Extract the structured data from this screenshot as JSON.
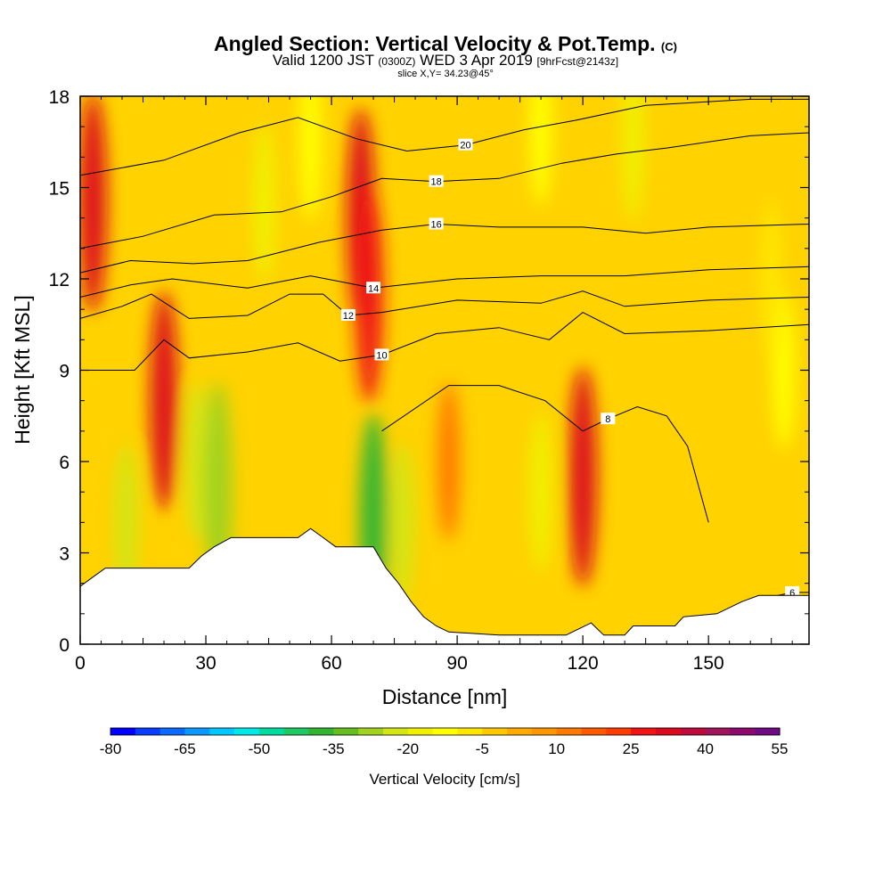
{
  "header": {
    "title": "Angled Section: Vertical Velocity & Pot.Temp.",
    "title_badge": "(C)",
    "valid_prefix": "Valid 1200 JST",
    "valid_utc": "(0300Z)",
    "valid_date": "WED 3 Apr 2019",
    "forecast_info": "[9hrFcst@2143z]",
    "slice_info": "slice X,Y= 34.23@45°"
  },
  "chart_data": {
    "type": "heatmap",
    "xlabel": "Distance [nm]",
    "ylabel": "Height [Kft MSL]",
    "xlim": [
      0,
      174
    ],
    "ylim": [
      0,
      18
    ],
    "x_ticks": [
      0,
      30,
      60,
      90,
      120,
      150
    ],
    "y_ticks": [
      0,
      3,
      6,
      9,
      12,
      15,
      18
    ],
    "grid": false,
    "field_variable": "Vertical Velocity [cm/s]",
    "colorbar": {
      "title": "Vertical Velocity [cm/s]",
      "tick_labels": [
        "-80",
        "-65",
        "-50",
        "-35",
        "-20",
        "-5",
        "10",
        "25",
        "40",
        "55"
      ],
      "colors": [
        "#0000ff",
        "#0a3dff",
        "#0a6aff",
        "#0a9aff",
        "#00c8ff",
        "#00e8e8",
        "#00dca0",
        "#1ec864",
        "#32b432",
        "#64be1e",
        "#a0d21e",
        "#d2e614",
        "#f0f000",
        "#ffff00",
        "#ffe600",
        "#ffc800",
        "#ffaa00",
        "#ff9600",
        "#ff7800",
        "#ff5a00",
        "#ff3c00",
        "#f01414",
        "#dc0a1e",
        "#be0a3c",
        "#a0145a",
        "#8c0a6e",
        "#6e0a82"
      ],
      "range": [
        -80,
        55
      ]
    },
    "velocity_cells": [
      {
        "x": 3,
        "y": 14.5,
        "value": 30
      },
      {
        "x": 20,
        "y": 8.0,
        "value": 32
      },
      {
        "x": 28,
        "y": 6.0,
        "value": -22
      },
      {
        "x": 33,
        "y": 5.0,
        "value": -28
      },
      {
        "x": 11,
        "y": 4.0,
        "value": -25
      },
      {
        "x": 67,
        "y": 14.0,
        "value": 32
      },
      {
        "x": 69,
        "y": 11.5,
        "value": 28
      },
      {
        "x": 44,
        "y": 14.5,
        "value": -18
      },
      {
        "x": 55,
        "y": 16.5,
        "value": -15
      },
      {
        "x": 70,
        "y": 4.0,
        "value": -40
      },
      {
        "x": 77,
        "y": 4.0,
        "value": -25
      },
      {
        "x": 120,
        "y": 5.5,
        "value": 33
      },
      {
        "x": 110,
        "y": 5.0,
        "value": -18
      },
      {
        "x": 132,
        "y": 16.5,
        "value": -18
      },
      {
        "x": 110,
        "y": 17.0,
        "value": -12
      },
      {
        "x": 168,
        "y": 9.0,
        "value": -15
      },
      {
        "x": 165,
        "y": 12.0,
        "value": -10
      },
      {
        "x": 88,
        "y": 6.0,
        "value": 12
      }
    ],
    "theta_contours": [
      {
        "label": "6",
        "points": [
          [
            158,
            0.9
          ],
          [
            163,
            1.5
          ],
          [
            170,
            1.7
          ],
          [
            174,
            1.7
          ]
        ]
      },
      {
        "label": "8",
        "points": [
          [
            72,
            7.0
          ],
          [
            88,
            8.5
          ],
          [
            100,
            8.5
          ],
          [
            111,
            8.0
          ],
          [
            120,
            7.0
          ],
          [
            126,
            7.4
          ],
          [
            133,
            7.8
          ],
          [
            140,
            7.5
          ],
          [
            145,
            6.5
          ],
          [
            150,
            4.0
          ]
        ]
      },
      {
        "label": "10",
        "points": [
          [
            0,
            9.0
          ],
          [
            13,
            9.0
          ],
          [
            20,
            10.0
          ],
          [
            26,
            9.4
          ],
          [
            40,
            9.6
          ],
          [
            52,
            9.9
          ],
          [
            62,
            9.3
          ],
          [
            72,
            9.5
          ],
          [
            85,
            10.2
          ],
          [
            100,
            10.4
          ],
          [
            112,
            10.0
          ],
          [
            120,
            10.9
          ],
          [
            130,
            10.2
          ],
          [
            150,
            10.3
          ],
          [
            174,
            10.5
          ]
        ]
      },
      {
        "label": "12",
        "points": [
          [
            0,
            10.7
          ],
          [
            10,
            11.1
          ],
          [
            17,
            11.5
          ],
          [
            26,
            10.7
          ],
          [
            40,
            10.8
          ],
          [
            50,
            11.5
          ],
          [
            58,
            11.5
          ],
          [
            64,
            10.8
          ],
          [
            72,
            10.9
          ],
          [
            90,
            11.3
          ],
          [
            110,
            11.2
          ],
          [
            120,
            11.6
          ],
          [
            130,
            11.1
          ],
          [
            150,
            11.3
          ],
          [
            174,
            11.4
          ]
        ]
      },
      {
        "label": "14",
        "points": [
          [
            0,
            11.4
          ],
          [
            12,
            11.8
          ],
          [
            22,
            12.0
          ],
          [
            40,
            11.7
          ],
          [
            55,
            12.1
          ],
          [
            70,
            11.7
          ],
          [
            90,
            12.0
          ],
          [
            110,
            12.1
          ],
          [
            130,
            12.1
          ],
          [
            150,
            12.3
          ],
          [
            174,
            12.4
          ]
        ]
      },
      {
        "label": "16",
        "points": [
          [
            0,
            12.2
          ],
          [
            12,
            12.6
          ],
          [
            27,
            12.5
          ],
          [
            40,
            12.6
          ],
          [
            57,
            13.2
          ],
          [
            72,
            13.6
          ],
          [
            85,
            13.8
          ],
          [
            100,
            13.7
          ],
          [
            120,
            13.7
          ],
          [
            135,
            13.5
          ],
          [
            150,
            13.7
          ],
          [
            174,
            13.8
          ]
        ]
      },
      {
        "label": "18",
        "points": [
          [
            0,
            13.0
          ],
          [
            15,
            13.4
          ],
          [
            32,
            14.1
          ],
          [
            48,
            14.2
          ],
          [
            60,
            14.7
          ],
          [
            72,
            15.3
          ],
          [
            85,
            15.2
          ],
          [
            100,
            15.3
          ],
          [
            115,
            15.8
          ],
          [
            128,
            16.1
          ],
          [
            140,
            16.3
          ],
          [
            160,
            16.7
          ],
          [
            174,
            16.8
          ]
        ]
      },
      {
        "label": "20",
        "points": [
          [
            0,
            15.4
          ],
          [
            20,
            15.9
          ],
          [
            38,
            16.8
          ],
          [
            52,
            17.3
          ],
          [
            66,
            16.6
          ],
          [
            78,
            16.2
          ],
          [
            92,
            16.4
          ],
          [
            106,
            16.9
          ],
          [
            118,
            17.2
          ],
          [
            135,
            17.7
          ],
          [
            160,
            17.9
          ],
          [
            174,
            17.9
          ]
        ]
      }
    ],
    "terrain": [
      [
        0,
        1.9
      ],
      [
        3,
        2.2
      ],
      [
        6,
        2.5
      ],
      [
        9,
        2.5
      ],
      [
        26,
        2.5
      ],
      [
        29,
        2.9
      ],
      [
        32,
        3.2
      ],
      [
        36,
        3.5
      ],
      [
        52,
        3.5
      ],
      [
        55,
        3.8
      ],
      [
        58,
        3.5
      ],
      [
        61,
        3.2
      ],
      [
        70,
        3.2
      ],
      [
        73,
        2.5
      ],
      [
        76,
        2.0
      ],
      [
        79,
        1.4
      ],
      [
        82,
        0.9
      ],
      [
        85,
        0.6
      ],
      [
        88,
        0.4
      ],
      [
        100,
        0.3
      ],
      [
        113,
        0.3
      ],
      [
        116,
        0.3
      ],
      [
        119,
        0.5
      ],
      [
        122,
        0.7
      ],
      [
        125,
        0.3
      ],
      [
        130,
        0.3
      ],
      [
        132,
        0.6
      ],
      [
        142,
        0.6
      ],
      [
        144,
        0.9
      ],
      [
        152,
        1.0
      ],
      [
        158,
        1.4
      ],
      [
        162,
        1.6
      ],
      [
        174,
        1.6
      ]
    ]
  }
}
